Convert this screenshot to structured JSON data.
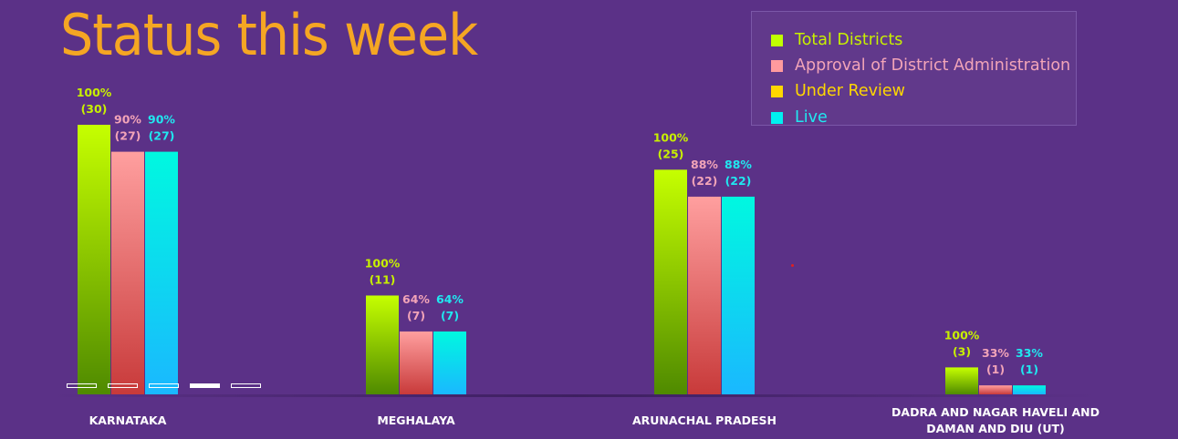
{
  "title": "Status this week",
  "legend": [
    {
      "label": "Total Districts",
      "color": "#c0ff00",
      "text_color": "#c8f000"
    },
    {
      "label": "Approval of District Administration",
      "color": "#ff9a9e",
      "text_color": "#f2a4b8"
    },
    {
      "label": "Under Review",
      "color": "#ffd700",
      "text_color": "#ffd700"
    },
    {
      "label": "Live",
      "color": "#00f0f0",
      "text_color": "#20e8f0"
    }
  ],
  "chart_data": {
    "type": "bar",
    "title": "Status this week",
    "categories": [
      "KARNATAKA",
      "MEGHALAYA",
      "ARUNACHAL PRADESH",
      "DADRA AND NAGAR HAVELI AND DAMAN AND DIU (UT)"
    ],
    "category_lines": [
      [
        "KARNATAKA"
      ],
      [
        "MEGHALAYA"
      ],
      [
        "ARUNACHAL PRADESH"
      ],
      [
        "DADRA AND NAGAR HAVELI AND",
        "DAMAN AND DIU (UT)"
      ]
    ],
    "series": [
      {
        "name": "Total Districts",
        "values": [
          30,
          11,
          25,
          3
        ],
        "pct": [
          "100%",
          "100%",
          "100%",
          "100%"
        ],
        "label_color": "#c8f000",
        "gradient": [
          "#c6ff00",
          "#4f8a00"
        ]
      },
      {
        "name": "Approval of District Administration",
        "values": [
          27,
          7,
          22,
          1
        ],
        "pct": [
          "90%",
          "64%",
          "88%",
          "33%"
        ],
        "label_color": "#f2a4b8",
        "gradient": [
          "#ff9f9f",
          "#c83a3a"
        ]
      },
      {
        "name": "Live",
        "values": [
          27,
          7,
          22,
          1
        ],
        "pct": [
          "90%",
          "64%",
          "88%",
          "33%"
        ],
        "label_color": "#20e8f0",
        "gradient": [
          "#00f8e0",
          "#1ab8ff"
        ]
      }
    ],
    "ylim": [
      0,
      30
    ],
    "legend_position": "top-right",
    "grid": false
  },
  "pagination": {
    "count": 5,
    "active_index": 3
  }
}
